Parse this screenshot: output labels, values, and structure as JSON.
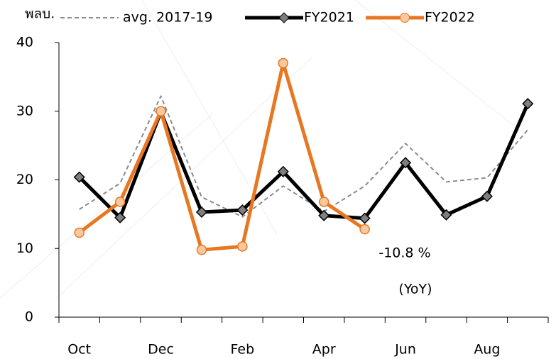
{
  "chart_data": {
    "type": "line",
    "y_label": "พลบ.",
    "categories": [
      "Oct",
      null,
      "Dec",
      null,
      "Feb",
      null,
      "Apr",
      null,
      "Jun",
      null,
      "Aug",
      null
    ],
    "series": [
      {
        "name": "avg. 2017-19",
        "color": "#8c8c8c",
        "dashed": true,
        "marker": "none",
        "values": [
          15.7,
          19.5,
          32.2,
          17.5,
          14.6,
          19.1,
          15.4,
          19.1,
          25.3,
          19.7,
          20.3,
          27.3
        ]
      },
      {
        "name": "FY2021",
        "color": "#000000",
        "marker": "diamond",
        "marker_color": "#7f7f7f",
        "values": [
          20.4,
          14.5,
          29.9,
          15.3,
          15.6,
          21.2,
          14.8,
          14.4,
          22.5,
          14.9,
          17.6,
          31.1
        ]
      },
      {
        "name": "FY2022",
        "color": "#e87722",
        "marker": "circle",
        "marker_color": "#f8c9a0",
        "values": [
          12.3,
          16.8,
          30.0,
          9.8,
          10.3,
          37.0,
          16.8,
          12.8,
          null,
          null,
          null,
          null
        ]
      }
    ],
    "annotations": [
      "-10.8 %",
      "(YoY)"
    ],
    "annotation_color": "#c00000",
    "ylim": [
      0,
      40
    ],
    "yticks": [
      0,
      10,
      20,
      30,
      40
    ]
  }
}
